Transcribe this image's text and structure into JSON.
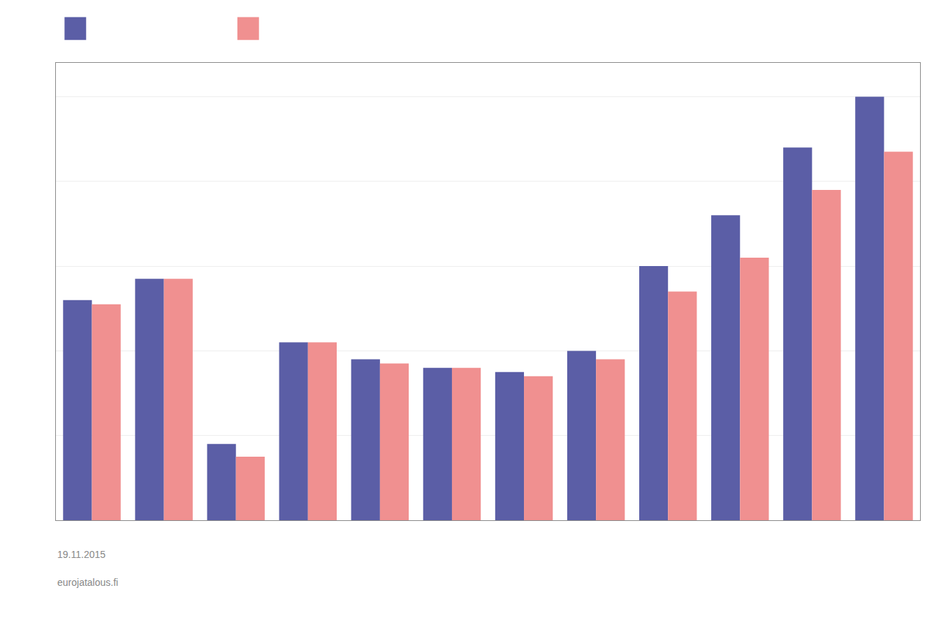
{
  "chart_data": {
    "type": "bar",
    "categories": [
      null,
      null,
      null,
      null,
      null,
      null,
      null,
      null,
      null,
      null,
      null,
      null
    ],
    "series": [
      {
        "color": "#5b5ea6",
        "values": [
          52,
          57,
          18,
          42,
          38,
          36,
          35,
          40,
          60,
          72,
          88,
          100
        ]
      },
      {
        "color": "#f09090",
        "values": [
          51,
          57,
          15,
          42,
          37,
          36,
          34,
          38,
          54,
          62,
          78,
          87
        ]
      }
    ],
    "ylim": [
      0,
      108
    ],
    "yticks": [
      0,
      20,
      40,
      60,
      80,
      100
    ],
    "grid": true,
    "tick_labels": false,
    "annotations": [
      "19.11.2015",
      "eurojatalous.fi"
    ]
  }
}
